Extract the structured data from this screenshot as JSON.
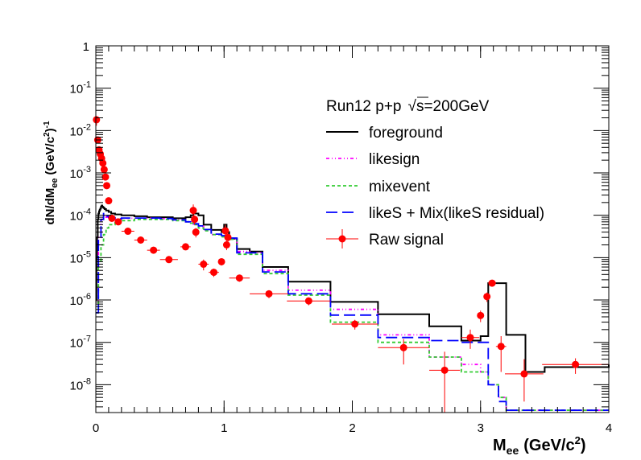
{
  "chart_data": {
    "type": "line",
    "title": "",
    "xlabel": "M",
    "xlabel_sub": "ee",
    "xlabel_unit": "(GeV/c",
    "xlabel_unit_sup": "2",
    "xlabel_unit_close": ")",
    "ylabel": "dN/dM",
    "ylabel_sub": "ee",
    "ylabel_unit": "(GeV/c",
    "ylabel_unit_sup": "2",
    "ylabel_unit_close": ")",
    "ylabel_unit_exp": "-1",
    "xlim": [
      0,
      4
    ],
    "ylim": [
      2.2e-09,
      1
    ],
    "yscale": "log",
    "x_ticks": [
      "0",
      "1",
      "2",
      "3",
      "4"
    ],
    "y_ticks": [
      {
        "v": 1,
        "base": "1",
        "exp": ""
      },
      {
        "v": 0.1,
        "base": "10",
        "exp": "-1"
      },
      {
        "v": 0.01,
        "base": "10",
        "exp": "-2"
      },
      {
        "v": 0.001,
        "base": "10",
        "exp": "-3"
      },
      {
        "v": 0.0001,
        "base": "10",
        "exp": "-4"
      },
      {
        "v": 1e-05,
        "base": "10",
        "exp": "-5"
      },
      {
        "v": 1e-06,
        "base": "10",
        "exp": "-6"
      },
      {
        "v": 1e-07,
        "base": "10",
        "exp": "-7"
      },
      {
        "v": 1e-08,
        "base": "10",
        "exp": "-8"
      }
    ],
    "legend_header": "Run12 p+p",
    "legend_header_energy": "s=200GeV",
    "legend_position": "upper-right",
    "series": [
      {
        "name": "foreground",
        "style": "solid",
        "color": "#000000",
        "x": [
          0,
          0.005,
          0.01,
          0.015,
          0.02,
          0.025,
          0.03,
          0.035,
          0.04,
          0.045,
          0.05,
          0.055,
          0.06,
          0.065,
          0.07,
          0.08,
          0.1,
          0.12,
          0.15,
          0.2,
          0.3,
          0.4,
          0.5,
          0.6,
          0.7,
          0.74,
          0.76,
          0.8,
          0.84,
          0.9,
          0.98,
          1.0,
          1.02,
          1.04,
          1.1,
          1.2,
          1.3,
          1.5,
          1.83,
          2.2,
          2.6,
          2.85,
          3.0,
          3.06,
          3.14,
          3.2,
          3.35,
          3.5,
          4.0
        ],
        "y": [
          1e-06,
          1e-05,
          3e-05,
          8e-05,
          0.00011,
          0.000125,
          0.000135,
          0.000145,
          0.00016,
          0.00017,
          0.00016,
          0.000155,
          0.00015,
          0.000145,
          0.00014,
          0.00013,
          0.00012,
          0.00011,
          0.000105,
          0.0001,
          9.5e-05,
          9e-05,
          9e-05,
          8.5e-05,
          9e-05,
          0.0001,
          0.00011,
          0.0001,
          6e-05,
          4.5e-05,
          4e-05,
          6e-05,
          4e-05,
          2.8e-05,
          1.6e-05,
          1.4e-05,
          6e-06,
          2.7e-06,
          9e-07,
          4.6e-07,
          2.4e-07,
          1.1e-07,
          1.4e-07,
          2.5e-06,
          2.5e-06,
          1.5e-07,
          2e-08,
          2.6e-08,
          3e-08
        ]
      },
      {
        "name": "likesign",
        "style": "dash-dot-dot",
        "color": "#ff00ff",
        "x": [
          0,
          0.02,
          0.04,
          0.06,
          0.08,
          0.1,
          0.15,
          0.2,
          0.3,
          0.4,
          0.5,
          0.6,
          0.7,
          0.74,
          0.76,
          0.8,
          0.84,
          0.9,
          0.98,
          1.02,
          1.04,
          1.1,
          1.2,
          1.3,
          1.5,
          1.83,
          2.2,
          2.6,
          2.85,
          3.0,
          3.06,
          3.14,
          3.2,
          3.35,
          3.5,
          4.0
        ],
        "y": [
          5e-07,
          3e-05,
          8e-05,
          0.0001,
          9e-05,
          8.5e-05,
          8e-05,
          8.5e-05,
          8.5e-05,
          8.5e-05,
          8.3e-05,
          7.8e-05,
          7e-05,
          6.5e-05,
          6.2e-05,
          5.5e-05,
          4.5e-05,
          3.5e-05,
          3.2e-05,
          3e-05,
          2.8e-05,
          1.4e-05,
          1.3e-05,
          5e-06,
          1.7e-06,
          6e-07,
          1.5e-07,
          4.5e-08,
          3e-08,
          2e-08,
          1e-08,
          5e-09,
          2.5e-09,
          2.5e-09,
          2.5e-09,
          2.5e-09
        ]
      },
      {
        "name": "mixevent",
        "style": "dashed",
        "color": "#33cc33",
        "x": [
          0,
          0.02,
          0.04,
          0.06,
          0.08,
          0.1,
          0.15,
          0.2,
          0.3,
          0.4,
          0.5,
          0.6,
          0.7,
          0.74,
          0.76,
          0.8,
          0.84,
          0.9,
          0.98,
          1.02,
          1.04,
          1.1,
          1.2,
          1.3,
          1.5,
          1.83,
          2.2,
          2.6,
          2.85,
          3.0,
          3.06,
          3.14,
          3.2,
          3.35,
          3.5,
          4.0
        ],
        "y": [
          5e-07,
          8e-06,
          2e-05,
          3.5e-05,
          5e-05,
          6e-05,
          7e-05,
          7.5e-05,
          8e-05,
          8e-05,
          8e-05,
          7.5e-05,
          7e-05,
          6.5e-05,
          6e-05,
          5e-05,
          4.3e-05,
          3.5e-05,
          3.1e-05,
          3e-05,
          2.7e-05,
          1.2e-05,
          1.2e-05,
          4.2e-06,
          1.3e-06,
          3e-07,
          1e-07,
          4.5e-08,
          2e-08,
          2e-08,
          1e-08,
          5e-09,
          2.5e-09,
          2.5e-09,
          2.5e-09,
          2.5e-09
        ]
      },
      {
        "name": "likeS + Mix(likeS residual)",
        "style": "long-dash",
        "color": "#0000ff",
        "x": [
          0,
          0.02,
          0.04,
          0.06,
          0.08,
          0.1,
          0.15,
          0.2,
          0.3,
          0.4,
          0.5,
          0.6,
          0.7,
          0.74,
          0.76,
          0.8,
          0.84,
          0.9,
          0.98,
          1.02,
          1.04,
          1.1,
          1.2,
          1.3,
          1.5,
          1.83,
          2.2,
          2.6,
          2.85,
          3.0,
          3.06,
          3.14,
          3.2,
          3.35,
          3.5,
          4.0
        ],
        "y": [
          5e-07,
          3e-05,
          8e-05,
          0.00011,
          9.5e-05,
          8.8e-05,
          8.2e-05,
          8.6e-05,
          8.6e-05,
          8.6e-05,
          8.4e-05,
          7.8e-05,
          7e-05,
          6.6e-05,
          6.3e-05,
          5.6e-05,
          4.6e-05,
          3.6e-05,
          3.3e-05,
          3.1e-05,
          2.9e-05,
          1.3e-05,
          1.3e-05,
          4.6e-06,
          1.4e-06,
          4.4e-07,
          1.3e-07,
          1.1e-07,
          1e-07,
          1e-07,
          1e-08,
          4e-09,
          2.5e-09,
          2.5e-09,
          2.5e-09,
          2.5e-09
        ]
      }
    ],
    "raw_signal": {
      "name": "Raw signal",
      "color": "#ff0000",
      "points": [
        {
          "x": 0.005,
          "y": 0.018,
          "xerr": 0.005,
          "ylo": 0.013,
          "yhi": 0.022
        },
        {
          "x": 0.015,
          "y": 0.006,
          "xerr": 0.005,
          "ylo": 0.005,
          "yhi": 0.007
        },
        {
          "x": 0.025,
          "y": 0.0035,
          "xerr": 0.005,
          "ylo": 0.003,
          "yhi": 0.004
        },
        {
          "x": 0.035,
          "y": 0.0028,
          "xerr": 0.005,
          "ylo": 0.0024,
          "yhi": 0.0032
        },
        {
          "x": 0.045,
          "y": 0.0022,
          "xerr": 0.005,
          "ylo": 0.0019,
          "yhi": 0.0025
        },
        {
          "x": 0.055,
          "y": 0.0017,
          "xerr": 0.005,
          "ylo": 0.0015,
          "yhi": 0.0019
        },
        {
          "x": 0.065,
          "y": 0.0012,
          "xerr": 0.005,
          "ylo": 0.001,
          "yhi": 0.0014
        },
        {
          "x": 0.075,
          "y": 0.0008,
          "xerr": 0.005,
          "ylo": 0.0007,
          "yhi": 0.0009
        },
        {
          "x": 0.085,
          "y": 0.0005,
          "xerr": 0.005,
          "ylo": 0.00043,
          "yhi": 0.00057
        },
        {
          "x": 0.1,
          "y": 0.00022,
          "xerr": 0.01,
          "ylo": 0.00019,
          "yhi": 0.00025
        },
        {
          "x": 0.125,
          "y": 8.5e-05,
          "xerr": 0.015,
          "ylo": 7e-05,
          "yhi": 0.0001
        },
        {
          "x": 0.175,
          "y": 7e-05,
          "xerr": 0.025,
          "ylo": 6e-05,
          "yhi": 8e-05
        },
        {
          "x": 0.25,
          "y": 4.2e-05,
          "xerr": 0.05,
          "ylo": 3.6e-05,
          "yhi": 4.8e-05
        },
        {
          "x": 0.35,
          "y": 2.6e-05,
          "xerr": 0.05,
          "ylo": 2.2e-05,
          "yhi": 3e-05
        },
        {
          "x": 0.45,
          "y": 1.5e-05,
          "xerr": 0.05,
          "ylo": 1.3e-05,
          "yhi": 1.7e-05
        },
        {
          "x": 0.57,
          "y": 9e-06,
          "xerr": 0.07,
          "ylo": 7.5e-06,
          "yhi": 1.05e-05
        },
        {
          "x": 0.7,
          "y": 1.8e-05,
          "xerr": 0.04,
          "ylo": 1.5e-05,
          "yhi": 2.1e-05
        },
        {
          "x": 0.76,
          "y": 0.00013,
          "xerr": 0.02,
          "ylo": 9e-05,
          "yhi": 0.00018
        },
        {
          "x": 0.77,
          "y": 8e-05,
          "xerr": 0.01,
          "ylo": 6e-05,
          "yhi": 0.0001
        },
        {
          "x": 0.78,
          "y": 4e-05,
          "xerr": 0.02,
          "ylo": 3e-05,
          "yhi": 5e-05
        },
        {
          "x": 0.84,
          "y": 7e-06,
          "xerr": 0.04,
          "ylo": 5e-06,
          "yhi": 9e-06
        },
        {
          "x": 0.92,
          "y": 4.5e-06,
          "xerr": 0.04,
          "ylo": 3.5e-06,
          "yhi": 5.5e-06
        },
        {
          "x": 0.98,
          "y": 8e-06,
          "xerr": 0.02,
          "ylo": 6.5e-06,
          "yhi": 9.5e-06
        },
        {
          "x": 1.01,
          "y": 4.3e-05,
          "xerr": 0.01,
          "ylo": 3e-05,
          "yhi": 6e-05
        },
        {
          "x": 1.02,
          "y": 2e-05,
          "xerr": 0.01,
          "ylo": 1.5e-05,
          "yhi": 2.5e-05
        },
        {
          "x": 1.03,
          "y": 3e-05,
          "xerr": 0.01,
          "ylo": 2.2e-05,
          "yhi": 3.8e-05
        },
        {
          "x": 1.12,
          "y": 3.3e-06,
          "xerr": 0.08,
          "ylo": 2.7e-06,
          "yhi": 3.9e-06
        },
        {
          "x": 1.35,
          "y": 1.4e-06,
          "xerr": 0.15,
          "ylo": 1.1e-06,
          "yhi": 1.7e-06
        },
        {
          "x": 1.66,
          "y": 9.5e-07,
          "xerr": 0.17,
          "ylo": 7.5e-07,
          "yhi": 1.15e-06
        },
        {
          "x": 2.02,
          "y": 2.7e-07,
          "xerr": 0.18,
          "ylo": 2e-07,
          "yhi": 3.4e-07
        },
        {
          "x": 2.4,
          "y": 7.5e-08,
          "xerr": 0.2,
          "ylo": 3e-08,
          "yhi": 1.2e-07
        },
        {
          "x": 2.72,
          "y": 2.2e-08,
          "xerr": 0.12,
          "ylo": 2.2e-09,
          "yhi": 6e-08
        },
        {
          "x": 2.92,
          "y": 1.3e-07,
          "xerr": 0.07,
          "ylo": 7e-08,
          "yhi": 2e-07
        },
        {
          "x": 3.0,
          "y": 4.3e-07,
          "xerr": 0.02,
          "ylo": 3e-07,
          "yhi": 5.6e-07
        },
        {
          "x": 3.05,
          "y": 1.2e-06,
          "xerr": 0.02,
          "ylo": 9e-07,
          "yhi": 1.5e-06
        },
        {
          "x": 3.09,
          "y": 2.5e-06,
          "xerr": 0.03,
          "ylo": 2.2e-06,
          "yhi": 2.8e-06
        },
        {
          "x": 3.16,
          "y": 8e-08,
          "xerr": 0.04,
          "ylo": 2e-08,
          "yhi": 1.4e-07
        },
        {
          "x": 3.34,
          "y": 1.8e-08,
          "xerr": 0.15,
          "ylo": 4e-09,
          "yhi": 4e-08
        },
        {
          "x": 3.74,
          "y": 3e-08,
          "xerr": 0.26,
          "ylo": 1.8e-08,
          "yhi": 4.2e-08
        }
      ]
    }
  }
}
